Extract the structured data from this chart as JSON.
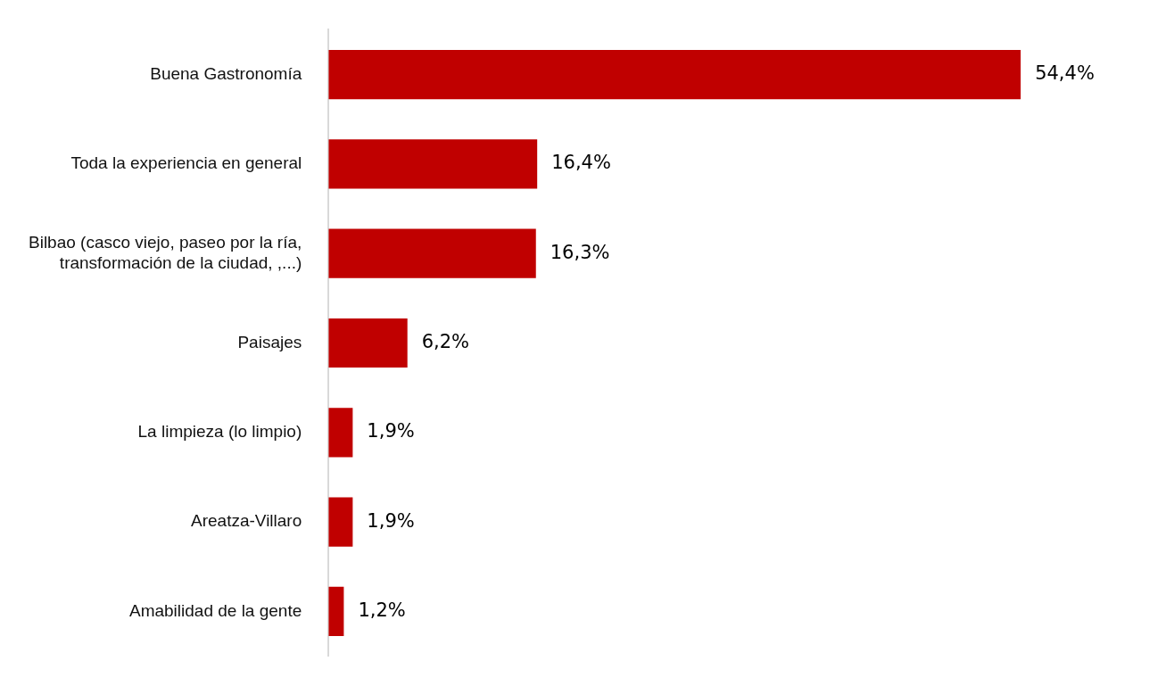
{
  "chart_data": {
    "type": "bar",
    "orientation": "horizontal",
    "categories": [
      "Buena Gastronomía",
      "Toda la experiencia en general",
      "Bilbao (casco viejo, paseo por la ría, transformación de la ciudad, ,...)",
      "Paisajes",
      "La limpieza (lo limpio)",
      "Areatza-Villaro",
      "Amabilidad de la gente"
    ],
    "values": [
      54.4,
      16.4,
      16.3,
      6.2,
      1.9,
      1.9,
      1.2
    ],
    "value_labels": [
      "54,4%",
      "16,4%",
      "16,3%",
      "6,2%",
      "1,9%",
      "1,9%",
      "1,2%"
    ],
    "color": "#c00000",
    "grid": false,
    "legend": false,
    "tick_labels": "y"
  }
}
